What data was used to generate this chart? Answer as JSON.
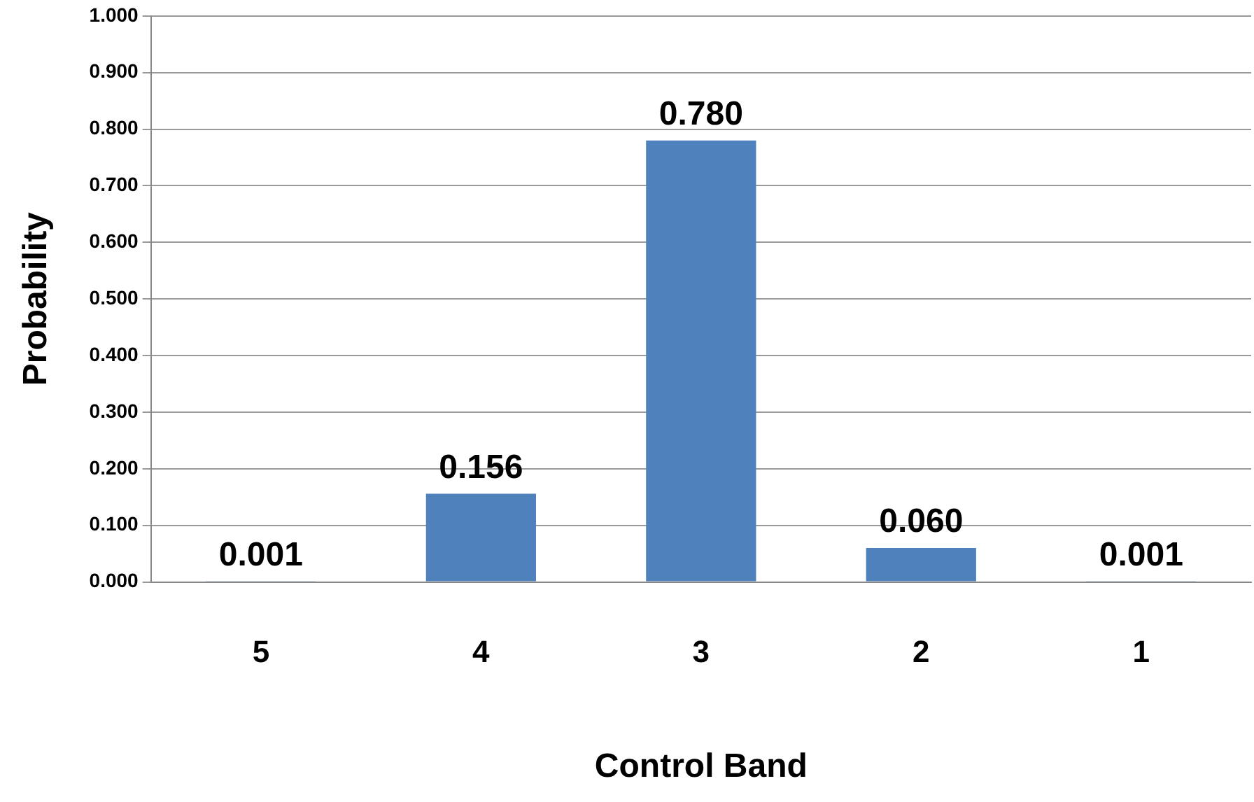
{
  "chart_data": {
    "type": "bar",
    "xlabel": "Control Band",
    "ylabel": "Probability",
    "categories": [
      "5",
      "4",
      "3",
      "2",
      "1"
    ],
    "values": [
      0.001,
      0.156,
      0.78,
      0.06,
      0.001
    ],
    "value_labels": [
      "0.001",
      "0.156",
      "0.780",
      "0.060",
      "0.001"
    ],
    "color": "#4f81bd",
    "ylim": [
      0,
      1
    ],
    "yticks": [
      {
        "value": 0,
        "label": "0.000"
      },
      {
        "value": 0.1,
        "label": "0.100"
      },
      {
        "value": 0.2,
        "label": "0.200"
      },
      {
        "value": 0.3,
        "label": "0.300"
      },
      {
        "value": 0.4,
        "label": "0.400"
      },
      {
        "value": 0.5,
        "label": "0.500"
      },
      {
        "value": 0.6,
        "label": "0.600"
      },
      {
        "value": 0.7,
        "label": "0.700"
      },
      {
        "value": 0.8,
        "label": "0.800"
      },
      {
        "value": 0.9,
        "label": "0.900"
      },
      {
        "value": 1,
        "label": "1.000"
      }
    ],
    "grid": "y"
  }
}
